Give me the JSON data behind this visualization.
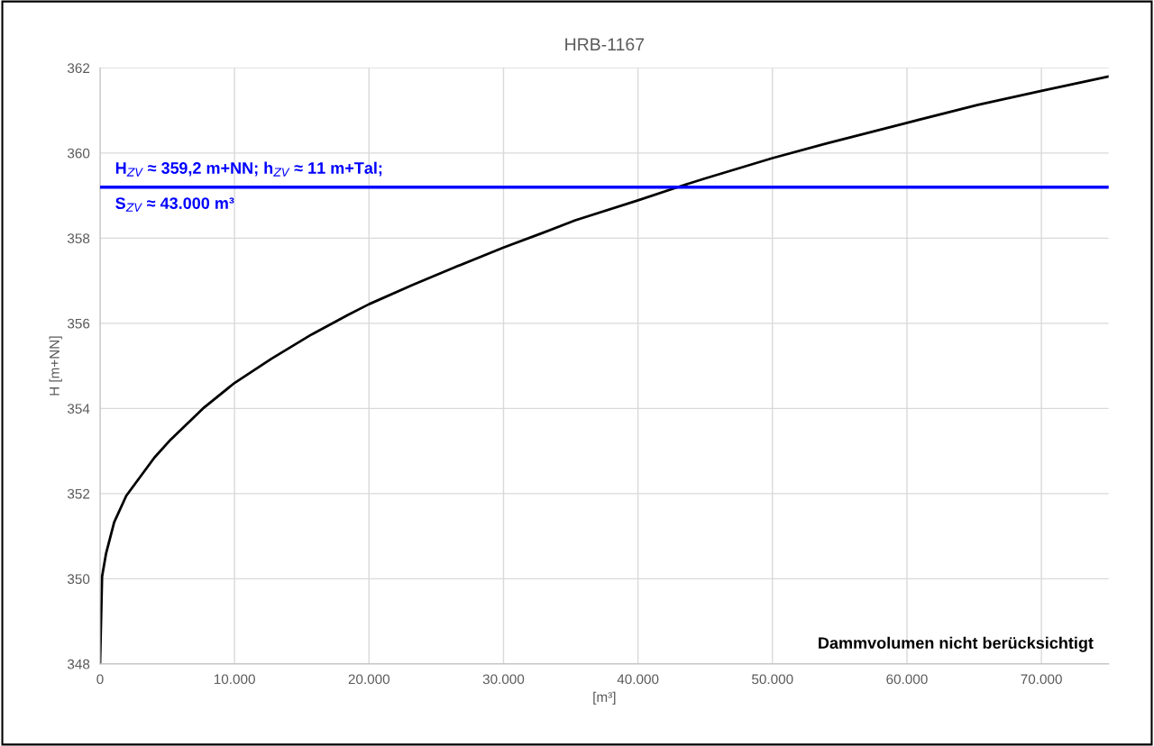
{
  "chart_data": {
    "type": "line",
    "title": "HRB-1167",
    "xlabel": "[m³]",
    "ylabel": "H [m+NN]",
    "x": [
      0,
      150,
      450,
      1050,
      1950,
      3000,
      4050,
      5250,
      7650,
      10000,
      12750,
      15740,
      18440,
      20000,
      23240,
      26240,
      30000,
      32800,
      35340,
      40000,
      43250,
      44950,
      50000,
      53980,
      60000,
      65280,
      70000,
      75000
    ],
    "series": [
      {
        "color": "#000000",
        "values": [
          348,
          350.05,
          350.6,
          351.33,
          351.95,
          352.4,
          352.85,
          353.27,
          354.0,
          354.6,
          355.17,
          355.74,
          356.2,
          356.45,
          356.9,
          357.3,
          357.78,
          358.11,
          358.42,
          358.89,
          359.23,
          359.4,
          359.88,
          360.22,
          360.71,
          361.13,
          361.46,
          361.8
        ]
      }
    ],
    "xlim": [
      0,
      75000
    ],
    "xticks": [
      0,
      {
        "value": 10000,
        "label": "10.000"
      },
      {
        "value": 20000,
        "label": "20.000"
      },
      {
        "value": 30000,
        "label": "30.000"
      },
      {
        "value": 40000,
        "label": "40.000"
      },
      {
        "value": 50000,
        "label": "50.000"
      },
      {
        "value": 60000,
        "label": "60.000"
      },
      {
        "value": 70000,
        "label": "70.000"
      }
    ],
    "ylim": [
      348,
      362
    ],
    "yticks": [
      348,
      350,
      352,
      354,
      356,
      358,
      360,
      362
    ],
    "ref_lines": [
      {
        "axis": "y",
        "value": 359.2,
        "color": "#0000ff",
        "line_style": "solid",
        "label": "H$_{ZV}$ ≈ 359,2 m+NN; h$_{ZV}$ ≈ 11 m+Tal;\nS$_{ZV}$ ≈ 43.000 m³"
      }
    ],
    "annotations": [
      "Dammvolumen nicht berücksichtigt"
    ],
    "grid": true,
    "marker": "none",
    "line_style": "solid"
  }
}
